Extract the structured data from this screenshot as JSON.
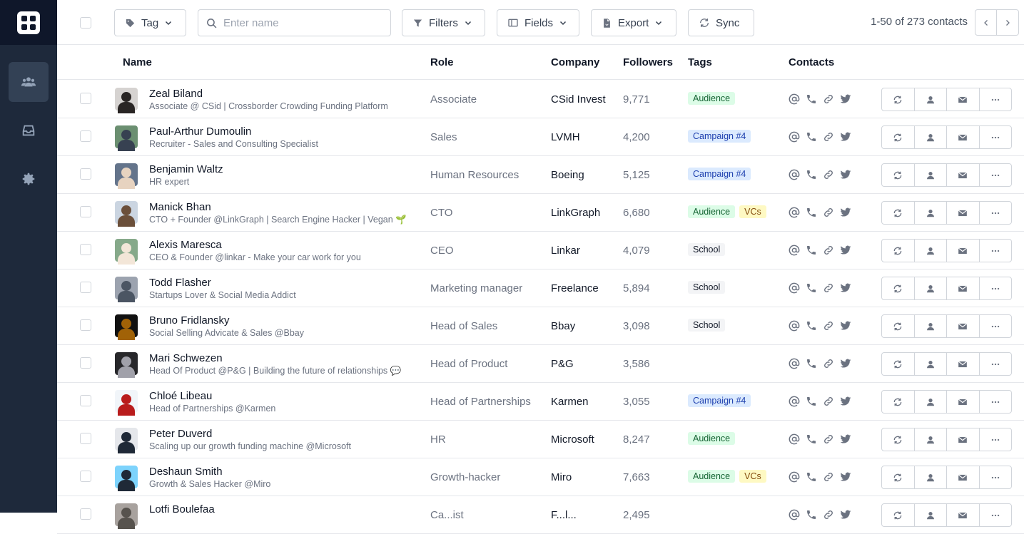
{
  "toolbar": {
    "tag_label": "Tag",
    "search_placeholder": "Enter name",
    "filters_label": "Filters",
    "fields_label": "Fields",
    "export_label": "Export",
    "sync_label": "Sync",
    "pagination": "1-50 of 273 contacts"
  },
  "columns": {
    "name": "Name",
    "role": "Role",
    "company": "Company",
    "followers": "Followers",
    "tags": "Tags",
    "contacts": "Contacts"
  },
  "tag_colors": {
    "Audience": "green",
    "Campaign #4": "blue",
    "VCs": "yellow",
    "School": "gray"
  },
  "rows": [
    {
      "name": "Zeal Biland",
      "desc": "Associate @ CSid | Crossborder Crowding Funding Platform",
      "role": "Associate",
      "company": "CSid Invest",
      "followers": "9,771",
      "tags": [
        "Audience"
      ],
      "avatar_bg": "#d6d3d1",
      "avatar_fg": "#292524"
    },
    {
      "name": "Paul-Arthur Dumoulin",
      "desc": "Recruiter - Sales and Consulting Specialist",
      "role": "Sales",
      "company": "LVMH",
      "followers": "4,200",
      "tags": [
        "Campaign #4"
      ],
      "avatar_bg": "#6b8f71",
      "avatar_fg": "#374151"
    },
    {
      "name": "Benjamin Waltz",
      "desc": "HR expert",
      "role": "Human Resources",
      "company": "Boeing",
      "followers": "5,125",
      "tags": [
        "Campaign #4"
      ],
      "avatar_bg": "#64748b",
      "avatar_fg": "#e7d3c0"
    },
    {
      "name": "Manick Bhan",
      "desc": "CTO + Founder @LinkGraph | Search Engine Hacker | Vegan 🌱",
      "role": "CTO",
      "company": "LinkGraph",
      "followers": "6,680",
      "tags": [
        "Audience",
        "VCs"
      ],
      "avatar_bg": "#cbd5e1",
      "avatar_fg": "#6b4f3a"
    },
    {
      "name": "Alexis Maresca",
      "desc": "CEO & Founder @linkar - Make your car work for you",
      "role": "CEO",
      "company": "Linkar",
      "followers": "4,079",
      "tags": [
        "School"
      ],
      "avatar_bg": "#86a98a",
      "avatar_fg": "#f3e6d8"
    },
    {
      "name": "Todd Flasher",
      "desc": "Startups Lover & Social Media Addict",
      "role": "Marketing manager",
      "company": "Freelance",
      "followers": "5,894",
      "tags": [
        "School"
      ],
      "avatar_bg": "#9ca3af",
      "avatar_fg": "#4b5563"
    },
    {
      "name": "Bruno Fridlansky",
      "desc": "Social Selling Advicate & Sales @Bbay",
      "role": "Head of Sales",
      "company": "Bbay",
      "followers": "3,098",
      "tags": [
        "School"
      ],
      "avatar_bg": "#111111",
      "avatar_fg": "#a16207"
    },
    {
      "name": "Mari Schwezen",
      "desc": "Head Of Product @P&G | Building the future of relationships 💬",
      "role": "Head of Product",
      "company": "P&G",
      "followers": "3,586",
      "tags": [],
      "avatar_bg": "#27272a",
      "avatar_fg": "#a1a1aa"
    },
    {
      "name": "Chloé Libeau",
      "desc": "Head of Partnerships @Karmen",
      "role": "Head of Partnerships",
      "company": "Karmen",
      "followers": "3,055",
      "tags": [
        "Campaign #4"
      ],
      "avatar_bg": "#f1f5f9",
      "avatar_fg": "#b91c1c"
    },
    {
      "name": "Peter Duverd",
      "desc": "Scaling up our growth funding machine @Microsoft",
      "role": "HR",
      "company": "Microsoft",
      "followers": "8,247",
      "tags": [
        "Audience"
      ],
      "avatar_bg": "#e5e7eb",
      "avatar_fg": "#1f2937"
    },
    {
      "name": "Deshaun Smith",
      "desc": "Growth & Sales Hacker @Miro",
      "role": "Growth-hacker",
      "company": "Miro",
      "followers": "7,663",
      "tags": [
        "Audience",
        "VCs"
      ],
      "avatar_bg": "#7dd3fc",
      "avatar_fg": "#1f2937"
    },
    {
      "name": "Lotfi Boulefaa",
      "desc": "",
      "role": "Ca...ist",
      "company": "F...l...",
      "followers": "2,495",
      "tags": [],
      "avatar_bg": "#a8a29e",
      "avatar_fg": "#57534e"
    }
  ]
}
